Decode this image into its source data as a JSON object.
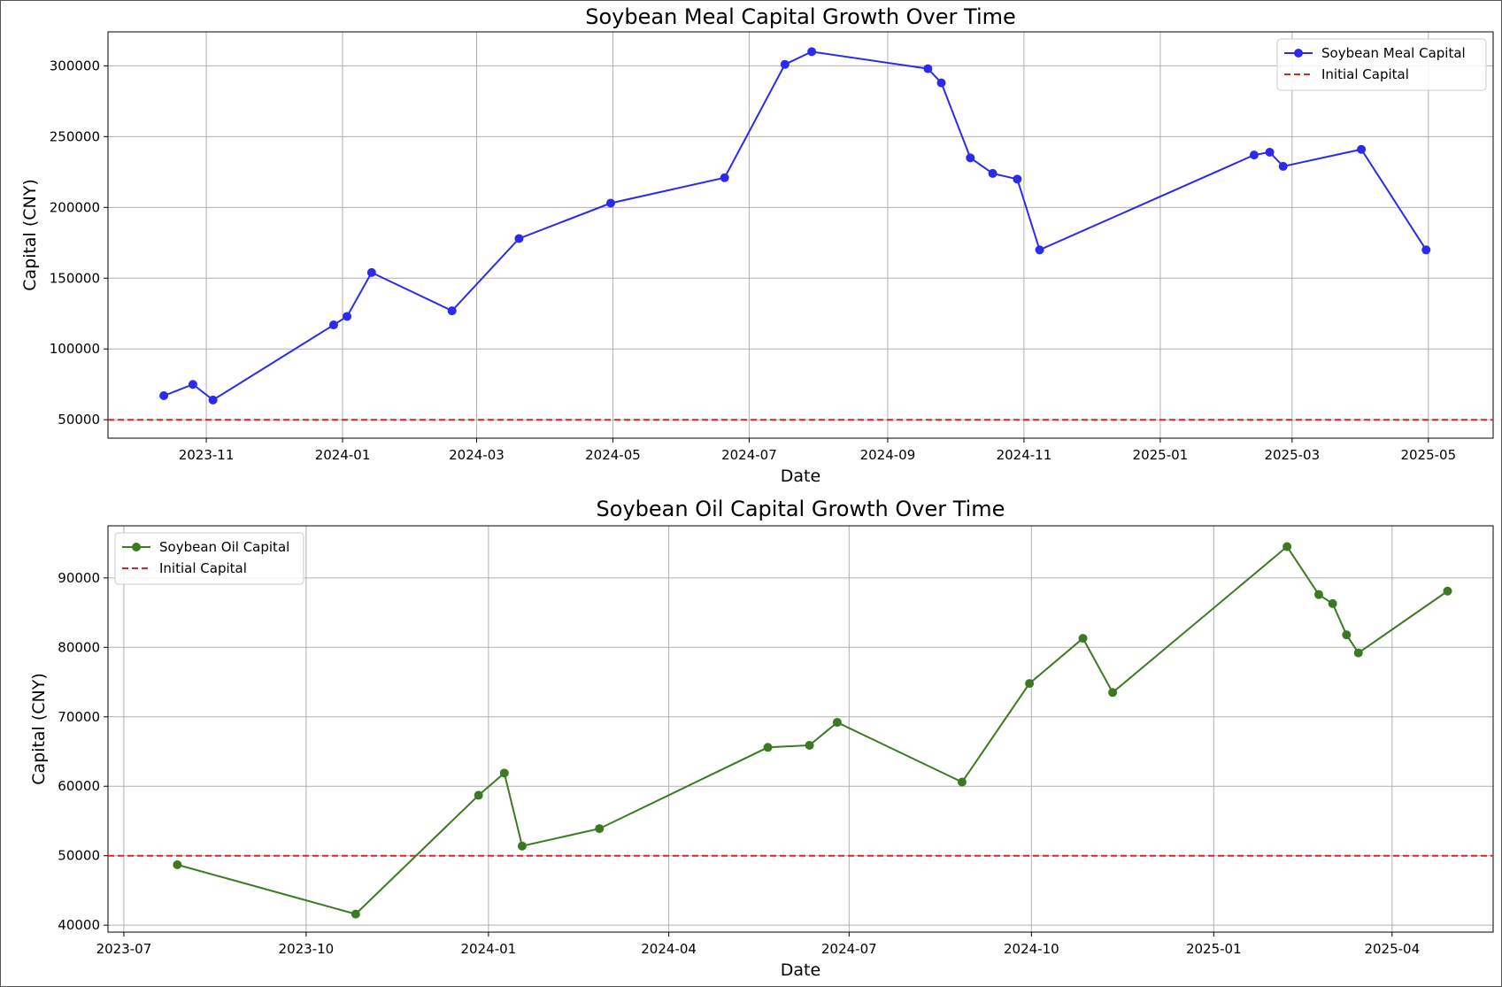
{
  "figure": {
    "background": "#ffffff",
    "grid_color": "#b0b0b0"
  },
  "chart_data": [
    {
      "type": "line",
      "title": "Soybean Meal Capital Growth Over Time",
      "xlabel": "Date",
      "ylabel": "Capital (CNY)",
      "x_axis": "date",
      "xlim": [
        "2023-09-18",
        "2025-05-30"
      ],
      "ylim": [
        37000,
        324000
      ],
      "x_ticks": [
        "2023-11-01",
        "2024-01-01",
        "2024-03-01",
        "2024-05-01",
        "2024-07-01",
        "2024-09-01",
        "2024-11-01",
        "2025-01-01",
        "2025-03-01",
        "2025-05-01"
      ],
      "x_tick_labels": [
        "2023-11",
        "2024-01",
        "2024-03",
        "2024-05",
        "2024-07",
        "2024-09",
        "2024-11",
        "2025-01",
        "2025-03",
        "2025-05"
      ],
      "y_ticks": [
        50000,
        100000,
        150000,
        200000,
        250000,
        300000
      ],
      "y_tick_labels": [
        "50000",
        "100000",
        "150000",
        "200000",
        "250000",
        "300000"
      ],
      "grid": true,
      "legend_position": "upper-right",
      "series": [
        {
          "name": "Soybean Meal Capital",
          "color": "#2b2bf0",
          "marker": "circle",
          "line_style": "solid",
          "x": [
            "2023-10-13",
            "2023-10-26",
            "2023-11-04",
            "2023-12-28",
            "2024-01-03",
            "2024-01-14",
            "2024-02-19",
            "2024-03-20",
            "2024-04-30",
            "2024-06-20",
            "2024-07-17",
            "2024-07-29",
            "2024-09-19",
            "2024-09-25",
            "2024-10-08",
            "2024-10-18",
            "2024-10-29",
            "2024-11-08",
            "2025-02-12",
            "2025-02-19",
            "2025-02-25",
            "2025-04-01",
            "2025-04-30"
          ],
          "y": [
            67000,
            75000,
            64000,
            117000,
            123000,
            154000,
            127000,
            178000,
            203000,
            221000,
            301000,
            310000,
            298000,
            288000,
            235000,
            224000,
            220000,
            170000,
            237000,
            239000,
            229000,
            241000,
            170000
          ]
        },
        {
          "name": "Initial Capital",
          "color": "#d62728",
          "line_style": "dashed",
          "constant_y": 50000
        }
      ]
    },
    {
      "type": "line",
      "title": "Soybean Oil Capital Growth Over Time",
      "xlabel": "Date",
      "ylabel": "Capital (CNY)",
      "x_axis": "date",
      "xlim": [
        "2023-06-23",
        "2025-05-22"
      ],
      "ylim": [
        39000,
        97500
      ],
      "x_ticks": [
        "2023-07-01",
        "2023-10-01",
        "2024-01-01",
        "2024-04-01",
        "2024-07-01",
        "2024-10-01",
        "2025-01-01",
        "2025-04-01"
      ],
      "x_tick_labels": [
        "2023-07",
        "2023-10",
        "2024-01",
        "2024-04",
        "2024-07",
        "2024-10",
        "2025-01",
        "2025-04"
      ],
      "y_ticks": [
        40000,
        50000,
        60000,
        70000,
        80000,
        90000
      ],
      "y_tick_labels": [
        "40000",
        "50000",
        "60000",
        "70000",
        "80000",
        "90000"
      ],
      "grid": true,
      "legend_position": "upper-left",
      "series": [
        {
          "name": "Soybean Oil Capital",
          "color": "#3b7a22",
          "marker": "circle",
          "line_style": "solid",
          "x": [
            "2023-07-28",
            "2023-10-26",
            "2023-12-27",
            "2024-01-09",
            "2024-01-18",
            "2024-02-26",
            "2024-05-21",
            "2024-06-11",
            "2024-06-25",
            "2024-08-27",
            "2024-09-30",
            "2024-10-27",
            "2024-11-11",
            "2025-02-07",
            "2025-02-23",
            "2025-03-02",
            "2025-03-09",
            "2025-03-15",
            "2025-04-29"
          ],
          "y": [
            48700,
            41600,
            58700,
            61900,
            51400,
            53900,
            65600,
            65900,
            69200,
            60600,
            74800,
            81300,
            73500,
            94500,
            87600,
            86300,
            81800,
            79200,
            88100
          ]
        },
        {
          "name": "Initial Capital",
          "color": "#d62728",
          "line_style": "dashed",
          "constant_y": 50000
        }
      ]
    }
  ]
}
